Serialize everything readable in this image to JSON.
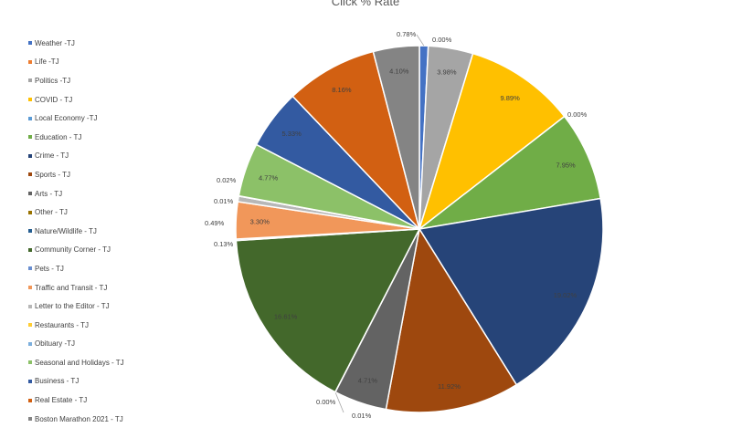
{
  "chart_data": {
    "type": "pie",
    "title": "Click % Rate",
    "legend_position": "left",
    "slices": [
      {
        "name": "Weather -TJ",
        "value": 0.78,
        "label": "0.78%",
        "color": "#4472c4"
      },
      {
        "name": "Life -TJ",
        "value": 0.0,
        "label": "0.00%",
        "color": "#ed7d31"
      },
      {
        "name": "Politics -TJ",
        "value": 3.98,
        "label": "3.98%",
        "color": "#a5a5a5"
      },
      {
        "name": "COVID - TJ",
        "value": 9.89,
        "label": "9.89%",
        "color": "#ffc000"
      },
      {
        "name": "Local Economy -TJ",
        "value": 0.0,
        "label": "0.00%",
        "color": "#5b9bd5"
      },
      {
        "name": "Education - TJ",
        "value": 7.95,
        "label": "7.95%",
        "color": "#70ad47"
      },
      {
        "name": "Crime - TJ",
        "value": 19.02,
        "label": "19.02%",
        "color": "#264478"
      },
      {
        "name": "Sports - TJ",
        "value": 11.92,
        "label": "11.92%",
        "color": "#9e480e"
      },
      {
        "name": "Arts - TJ",
        "value": 4.71,
        "label": "4.71%",
        "color": "#636363"
      },
      {
        "name": "Other - TJ",
        "value": 0.01,
        "label": "0.01%",
        "color": "#997300"
      },
      {
        "name": "Nature/Wildlife - TJ",
        "value": 0.0,
        "label": "0.00%",
        "color": "#255e91"
      },
      {
        "name": "Community Corner - TJ",
        "value": 16.61,
        "label": "16.61%",
        "color": "#43682b"
      },
      {
        "name": "Pets - TJ",
        "value": 0.13,
        "label": "0.13%",
        "color": "#698ed0"
      },
      {
        "name": "Traffic and Transit - TJ",
        "value": 3.3,
        "label": "3.30%",
        "color": "#f1975a"
      },
      {
        "name": "Letter to the Editor - TJ",
        "value": 0.49,
        "label": "0.49%",
        "color": "#b7b7b7"
      },
      {
        "name": "Restaurants - TJ",
        "value": 0.01,
        "label": "0.01%",
        "color": "#ffcd33"
      },
      {
        "name": "Obituary -TJ",
        "value": 0.02,
        "label": "0.02%",
        "color": "#7cafdd"
      },
      {
        "name": "Seasonal and Holidays - TJ",
        "value": 4.77,
        "label": "4.77%",
        "color": "#8cc168"
      },
      {
        "name": "Business - TJ",
        "value": 5.33,
        "label": "5.33%",
        "color": "#335aa1"
      },
      {
        "name": "Real Estate - TJ",
        "value": 8.16,
        "label": "8.16%",
        "color": "#d26012"
      },
      {
        "name": "Boston Marathon 2021 - TJ",
        "value": 4.1,
        "label": "4.10%",
        "color": "#848484"
      }
    ]
  }
}
